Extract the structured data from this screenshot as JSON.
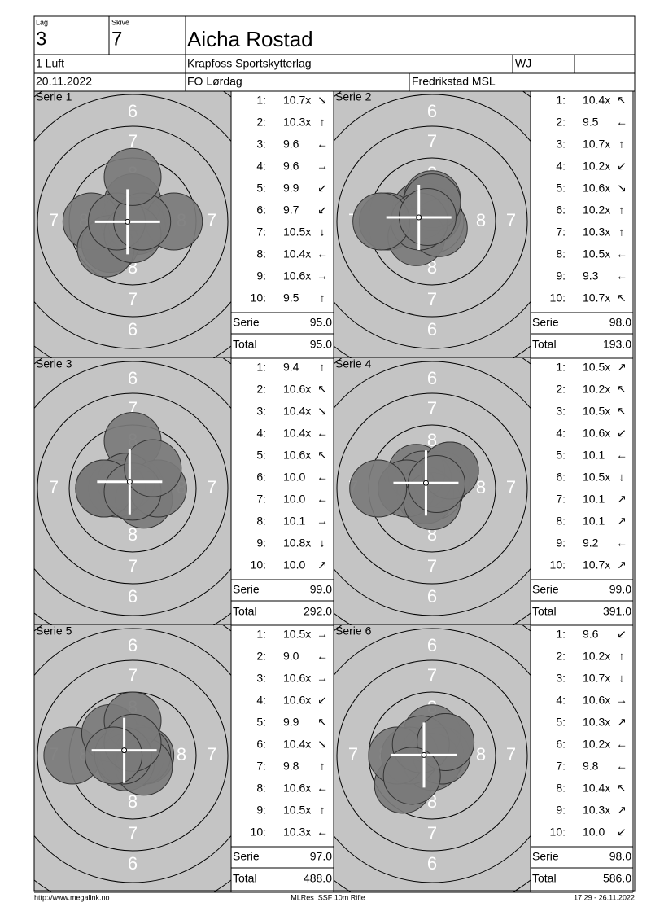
{
  "header": {
    "lag_label": "Lag",
    "lag": "3",
    "skive_label": "Skive",
    "skive": "7",
    "name": "Aicha Rostad",
    "event": "1 Luft",
    "club": "Krapfoss Sportskytterlag",
    "class": "WJ",
    "date": "20.11.2022",
    "competition": "FO Lørdag",
    "venue": "Fredrikstad MSL"
  },
  "ring_labels": [
    "6",
    "7",
    "8"
  ],
  "series": [
    {
      "title": "Serie 1",
      "serie_label": "Serie",
      "serie": "95.0",
      "total_label": "Total",
      "total": "95.0",
      "shots": [
        {
          "no": "1:",
          "score": "10.7x",
          "arrow": "↘"
        },
        {
          "no": "2:",
          "score": "10.3x",
          "arrow": "↑"
        },
        {
          "no": "3:",
          "score": "9.6",
          "arrow": "←"
        },
        {
          "no": "4:",
          "score": "9.6",
          "arrow": "→"
        },
        {
          "no": "5:",
          "score": "9.9",
          "arrow": "↙"
        },
        {
          "no": "6:",
          "score": "9.7",
          "arrow": "↙"
        },
        {
          "no": "7:",
          "score": "10.5x",
          "arrow": "↓"
        },
        {
          "no": "8:",
          "score": "10.4x",
          "arrow": "←"
        },
        {
          "no": "9:",
          "score": "10.6x",
          "arrow": "→"
        },
        {
          "no": "10:",
          "score": "9.5",
          "arrow": "↑"
        }
      ]
    },
    {
      "title": "Serie 2",
      "serie_label": "Serie",
      "serie": "98.0",
      "total_label": "Total",
      "total": "193.0",
      "shots": [
        {
          "no": "1:",
          "score": "10.4x",
          "arrow": "↖"
        },
        {
          "no": "2:",
          "score": "9.5",
          "arrow": "←"
        },
        {
          "no": "3:",
          "score": "10.7x",
          "arrow": "↑"
        },
        {
          "no": "4:",
          "score": "10.2x",
          "arrow": "↙"
        },
        {
          "no": "5:",
          "score": "10.6x",
          "arrow": "↘"
        },
        {
          "no": "6:",
          "score": "10.2x",
          "arrow": "↑"
        },
        {
          "no": "7:",
          "score": "10.3x",
          "arrow": "↑"
        },
        {
          "no": "8:",
          "score": "10.5x",
          "arrow": "←"
        },
        {
          "no": "9:",
          "score": "9.3",
          "arrow": "←"
        },
        {
          "no": "10:",
          "score": "10.7x",
          "arrow": "↖"
        }
      ]
    },
    {
      "title": "Serie 3",
      "serie_label": "Serie",
      "serie": "99.0",
      "total_label": "Total",
      "total": "292.0",
      "shots": [
        {
          "no": "1:",
          "score": "9.4",
          "arrow": "↑"
        },
        {
          "no": "2:",
          "score": "10.6x",
          "arrow": "↖"
        },
        {
          "no": "3:",
          "score": "10.4x",
          "arrow": "↘"
        },
        {
          "no": "4:",
          "score": "10.4x",
          "arrow": "←"
        },
        {
          "no": "5:",
          "score": "10.6x",
          "arrow": "↖"
        },
        {
          "no": "6:",
          "score": "10.0",
          "arrow": "←"
        },
        {
          "no": "7:",
          "score": "10.0",
          "arrow": "←"
        },
        {
          "no": "8:",
          "score": "10.1",
          "arrow": "→"
        },
        {
          "no": "9:",
          "score": "10.8x",
          "arrow": "↓"
        },
        {
          "no": "10:",
          "score": "10.0",
          "arrow": "↗"
        }
      ]
    },
    {
      "title": "Serie 4",
      "serie_label": "Serie",
      "serie": "99.0",
      "total_label": "Total",
      "total": "391.0",
      "shots": [
        {
          "no": "1:",
          "score": "10.5x",
          "arrow": "↗"
        },
        {
          "no": "2:",
          "score": "10.2x",
          "arrow": "↖"
        },
        {
          "no": "3:",
          "score": "10.5x",
          "arrow": "↖"
        },
        {
          "no": "4:",
          "score": "10.6x",
          "arrow": "↙"
        },
        {
          "no": "5:",
          "score": "10.1",
          "arrow": "←"
        },
        {
          "no": "6:",
          "score": "10.5x",
          "arrow": "↓"
        },
        {
          "no": "7:",
          "score": "10.1",
          "arrow": "↗"
        },
        {
          "no": "8:",
          "score": "10.1",
          "arrow": "↗"
        },
        {
          "no": "9:",
          "score": "9.2",
          "arrow": "←"
        },
        {
          "no": "10:",
          "score": "10.7x",
          "arrow": "↗"
        }
      ]
    },
    {
      "title": "Serie 5",
      "serie_label": "Serie",
      "serie": "97.0",
      "total_label": "Total",
      "total": "488.0",
      "shots": [
        {
          "no": "1:",
          "score": "10.5x",
          "arrow": "→"
        },
        {
          "no": "2:",
          "score": "9.0",
          "arrow": "←"
        },
        {
          "no": "3:",
          "score": "10.6x",
          "arrow": "→"
        },
        {
          "no": "4:",
          "score": "10.6x",
          "arrow": "↙"
        },
        {
          "no": "5:",
          "score": "9.9",
          "arrow": "↖"
        },
        {
          "no": "6:",
          "score": "10.4x",
          "arrow": "↘"
        },
        {
          "no": "7:",
          "score": "9.8",
          "arrow": "↑"
        },
        {
          "no": "8:",
          "score": "10.6x",
          "arrow": "←"
        },
        {
          "no": "9:",
          "score": "10.5x",
          "arrow": "↑"
        },
        {
          "no": "10:",
          "score": "10.3x",
          "arrow": "←"
        }
      ]
    },
    {
      "title": "Serie 6",
      "serie_label": "Serie",
      "serie": "98.0",
      "total_label": "Total",
      "total": "586.0",
      "shots": [
        {
          "no": "1:",
          "score": "9.6",
          "arrow": "↙"
        },
        {
          "no": "2:",
          "score": "10.2x",
          "arrow": "↑"
        },
        {
          "no": "3:",
          "score": "10.7x",
          "arrow": "↓"
        },
        {
          "no": "4:",
          "score": "10.6x",
          "arrow": "→"
        },
        {
          "no": "5:",
          "score": "10.3x",
          "arrow": "↗"
        },
        {
          "no": "6:",
          "score": "10.2x",
          "arrow": "←"
        },
        {
          "no": "7:",
          "score": "9.8",
          "arrow": "←"
        },
        {
          "no": "8:",
          "score": "10.4x",
          "arrow": "↖"
        },
        {
          "no": "9:",
          "score": "10.3x",
          "arrow": "↗"
        },
        {
          "no": "10:",
          "score": "10.0",
          "arrow": "↙"
        }
      ]
    }
  ],
  "footer": {
    "url": "http://www.megalink.no",
    "program": "MLRes ISSF 10m Rifle",
    "timestamp": "17:29 - 26.11.2022"
  }
}
